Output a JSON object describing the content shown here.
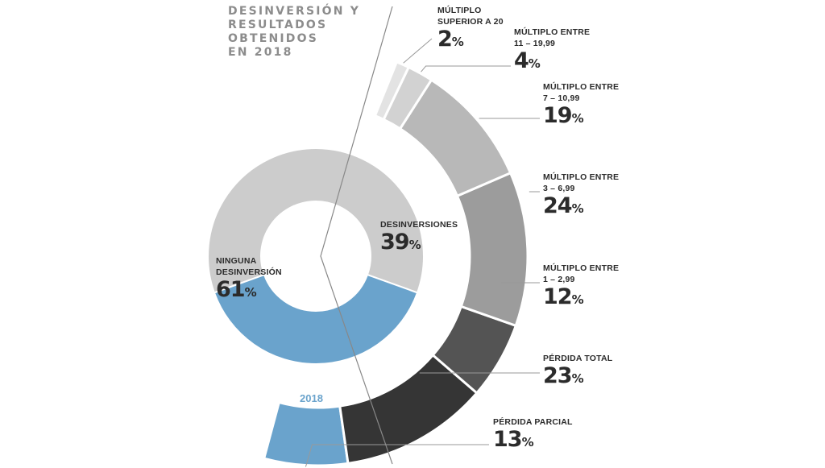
{
  "title_lines": [
    "DESINVERSIÓN Y",
    "RESULTADOS OBTENIDOS",
    "EN 2018"
  ],
  "year_label": "2018",
  "colors": {
    "ninguna": "#cccccc",
    "desinversiones": "#6aa3cc",
    "line": "#888888"
  },
  "chart_data": [
    {
      "type": "pie",
      "variant": "donut",
      "categories": [
        "Ninguna desinversión",
        "Desinversiones"
      ],
      "values": [
        61,
        39
      ],
      "unit": "%",
      "labels": [
        {
          "name_lines": [
            "NINGUNA",
            "DESINVERSIÓN"
          ],
          "value": "61",
          "unit": "%"
        },
        {
          "name_lines": [
            "DESINVERSIONES"
          ],
          "value": "39",
          "unit": "%"
        }
      ]
    },
    {
      "type": "pie",
      "variant": "half-ring breakdown of Desinversiones",
      "categories": [
        "Pérdida parcial",
        "Pérdida total",
        "Múltiplo entre 1 – 2,99",
        "Múltiplo entre 3 – 6,99",
        "Múltiplo entre 7 – 10,99",
        "Múltiplo entre 11 – 19,99",
        "Múltiplo superior a 20"
      ],
      "values": [
        13,
        23,
        12,
        24,
        19,
        4,
        2
      ],
      "unit": "%",
      "colors": [
        "#6aa3cc",
        "#353535",
        "#545454",
        "#9c9c9c",
        "#b8b8b8",
        "#d2d2d2",
        "#e3e3e3"
      ],
      "labels": [
        {
          "name_lines": [
            "PÉRDIDA PARCIAL"
          ],
          "value": "13",
          "unit": "%"
        },
        {
          "name_lines": [
            "PÉRDIDA TOTAL"
          ],
          "value": "23",
          "unit": "%"
        },
        {
          "name_lines": [
            "MÚLTIPLO ENTRE",
            "1 – 2,99"
          ],
          "value": "12",
          "unit": "%"
        },
        {
          "name_lines": [
            "MÚLTIPLO ENTRE",
            "3 – 6,99"
          ],
          "value": "24",
          "unit": "%"
        },
        {
          "name_lines": [
            "MÚLTIPLO ENTRE",
            "7 – 10,99"
          ],
          "value": "19",
          "unit": "%"
        },
        {
          "name_lines": [
            "MÚLTIPLO ENTRE",
            "11 – 19,99"
          ],
          "value": "4",
          "unit": "%"
        },
        {
          "name_lines": [
            "MÚLTIPLO",
            "SUPERIOR A 20"
          ],
          "value": "2",
          "unit": "%"
        }
      ]
    }
  ]
}
